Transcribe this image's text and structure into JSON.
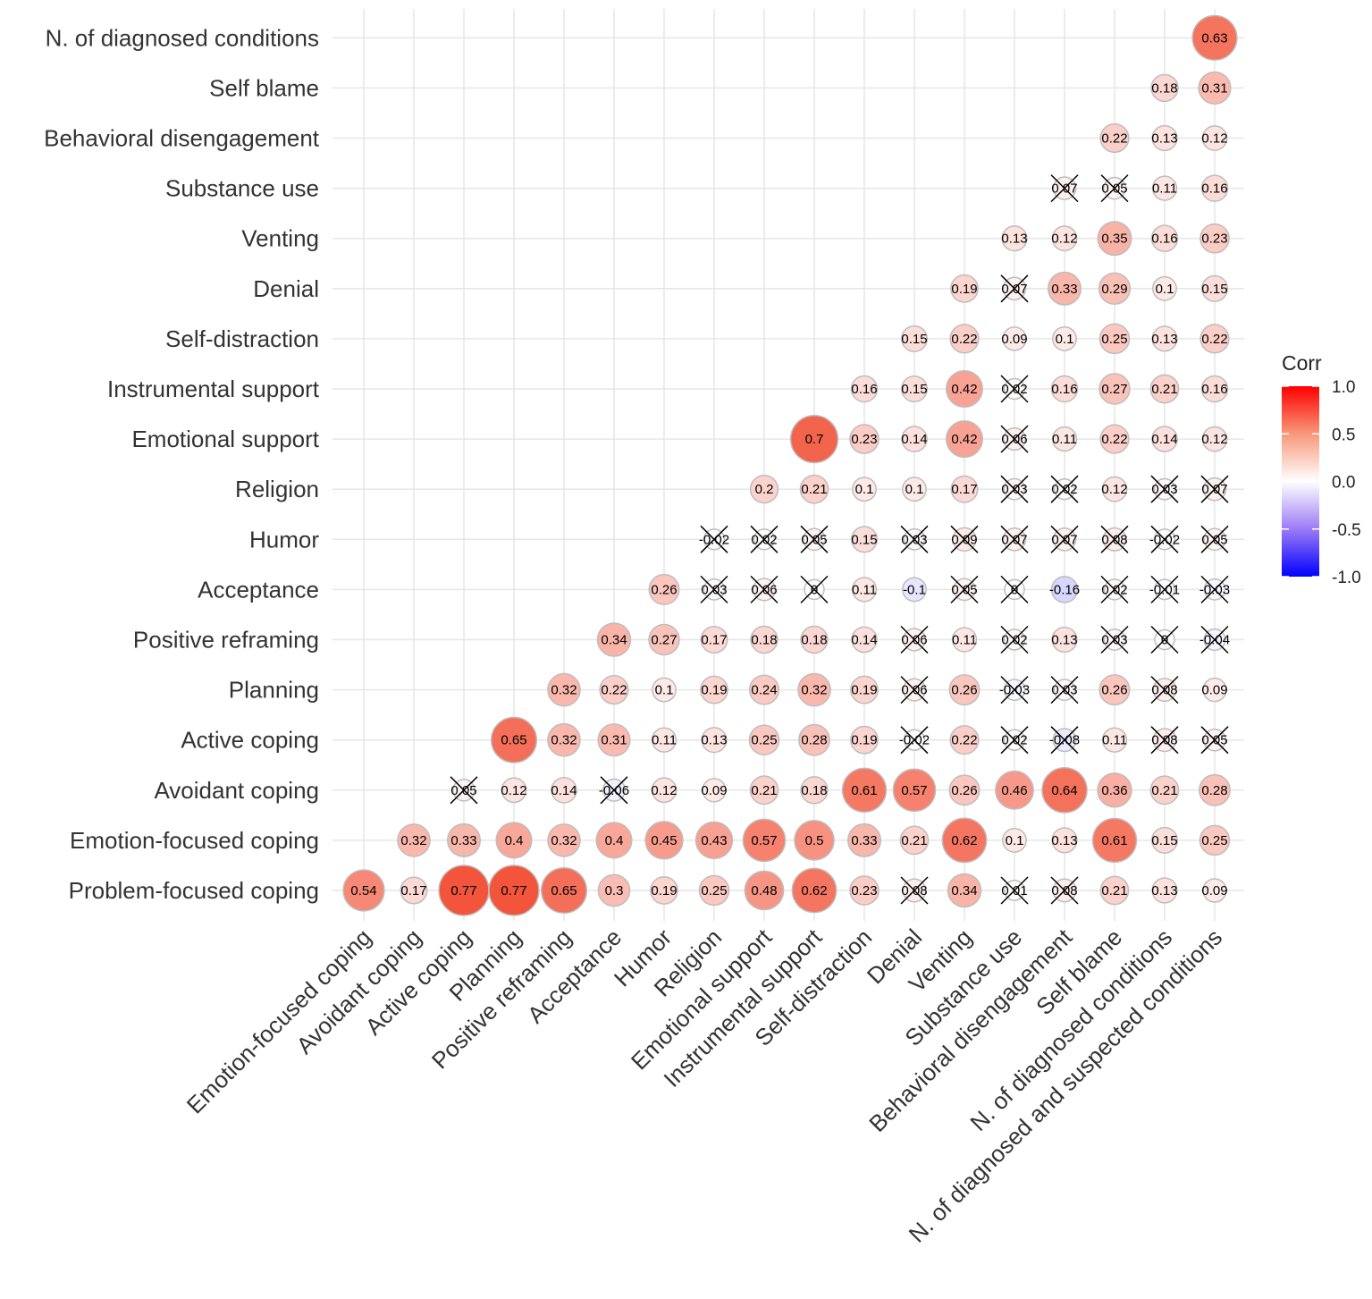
{
  "chart_data": {
    "type": "heatmap",
    "subtype": "correlogram-lower-triangle-circles",
    "row_labels": [
      "Problem-focused coping",
      "Emotion-focused coping",
      "Avoidant coping",
      "Active coping",
      "Planning",
      "Positive reframing",
      "Acceptance",
      "Humor",
      "Religion",
      "Emotional support",
      "Instrumental support",
      "Self-distraction",
      "Denial",
      "Venting",
      "Substance use",
      "Behavioral disengagement",
      "Self blame",
      "N. of diagnosed conditions"
    ],
    "col_labels": [
      "Emotion-focused coping",
      "Avoidant coping",
      "Active coping",
      "Planning",
      "Positive reframing",
      "Acceptance",
      "Humor",
      "Religion",
      "Emotional support",
      "Instrumental support",
      "Self-distraction",
      "Denial",
      "Venting",
      "Substance use",
      "Behavioral disengagement",
      "Self blame",
      "N. of diagnosed conditions",
      "N. of diagnosed and suspected conditions"
    ],
    "values": [
      [
        0.54,
        0.17,
        0.77,
        0.77,
        0.65,
        0.3,
        0.19,
        0.25,
        0.48,
        0.62,
        0.23,
        0.08,
        0.34,
        0.01,
        0.08,
        0.21,
        0.13,
        0.09
      ],
      [
        0.32,
        0.33,
        0.4,
        0.32,
        0.4,
        0.45,
        0.43,
        0.57,
        0.5,
        0.33,
        0.21,
        0.62,
        0.1,
        0.13,
        0.61,
        0.15,
        0.25
      ],
      [
        0.05,
        0.12,
        0.14,
        -0.06,
        0.12,
        0.09,
        0.21,
        0.18,
        0.61,
        0.57,
        0.26,
        0.46,
        0.64,
        0.36,
        0.21,
        0.28
      ],
      [
        0.65,
        0.32,
        0.31,
        0.11,
        0.13,
        0.25,
        0.28,
        0.19,
        -0.02,
        0.22,
        0.02,
        -0.08,
        0.11,
        0.08,
        0.05
      ],
      [
        0.32,
        0.22,
        0.1,
        0.19,
        0.24,
        0.32,
        0.19,
        0.06,
        0.26,
        -0.03,
        0.03,
        0.26,
        0.08,
        0.09
      ],
      [
        0.34,
        0.27,
        0.17,
        0.18,
        0.18,
        0.14,
        0.06,
        0.11,
        0.02,
        0.13,
        0.03,
        0,
        -0.04
      ],
      [
        0.26,
        0.03,
        0.06,
        0,
        0.11,
        -0.1,
        0.05,
        0,
        -0.16,
        0.02,
        -0.01,
        -0.03
      ],
      [
        -0.02,
        0.02,
        0.05,
        0.15,
        0.03,
        0.09,
        0.07,
        0.07,
        0.08,
        -0.02,
        0.05
      ],
      [
        0.2,
        0.21,
        0.1,
        0.1,
        0.17,
        0.03,
        0.02,
        0.12,
        0.03,
        0.07
      ],
      [
        0.7,
        0.23,
        0.14,
        0.42,
        0.06,
        0.11,
        0.22,
        0.14,
        0.12
      ],
      [
        0.16,
        0.15,
        0.42,
        0.02,
        0.16,
        0.27,
        0.21,
        0.16
      ],
      [
        0.15,
        0.22,
        0.09,
        0.1,
        0.25,
        0.13,
        0.22
      ],
      [
        0.19,
        0.07,
        0.33,
        0.29,
        0.1,
        0.15
      ],
      [
        0.13,
        0.12,
        0.35,
        0.16,
        0.23
      ],
      [
        0.07,
        0.05,
        0.11,
        0.16
      ],
      [
        0.22,
        0.13,
        0.12
      ],
      [
        0.18,
        0.31
      ],
      [
        0.63
      ]
    ],
    "nonsignificant": [
      [
        11,
        13,
        14
      ],
      [],
      [
        0,
        3
      ],
      [
        8,
        10,
        11,
        13,
        14
      ],
      [
        7,
        9,
        10,
        12
      ],
      [
        6,
        8,
        10,
        11,
        12
      ],
      [
        1,
        2,
        3,
        6,
        7,
        9,
        10,
        11
      ],
      [
        0,
        1,
        2,
        4,
        5,
        6,
        7,
        8,
        9,
        10
      ],
      [
        5,
        6,
        8,
        9
      ],
      [
        4
      ],
      [
        3
      ],
      [],
      [
        1
      ],
      [],
      [
        0,
        1
      ],
      [],
      [],
      []
    ],
    "legend": {
      "title": "Corr",
      "ticks": [
        "1.0",
        "0.5",
        "0.0",
        "-0.5",
        "-1.0"
      ],
      "range": [
        -1,
        1
      ],
      "placement": "right"
    },
    "colors": {
      "low": "#0000FF",
      "mid": "#FFFFFF",
      "high": "#FF0000"
    }
  }
}
